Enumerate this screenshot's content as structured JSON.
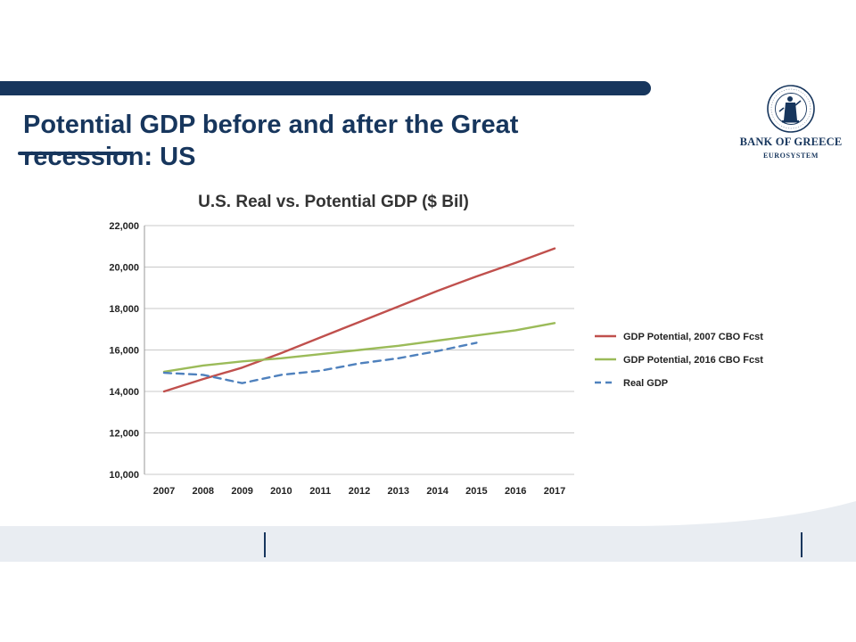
{
  "slide": {
    "title": "Potential GDP before and after the Great recession: US"
  },
  "logo": {
    "name": "BANK OF GREECE",
    "subtitle": "EUROSYSTEM"
  },
  "colors": {
    "brand_navy": "#17365d",
    "series_2007": "#c0504d",
    "series_2016": "#9bbb59",
    "series_real": "#4f81bd"
  },
  "chart_data": {
    "type": "line",
    "title": "U.S. Real vs. Potential GDP ($ Bil)",
    "xlabel": "",
    "ylabel": "",
    "x": [
      "2007",
      "2008",
      "2009",
      "2010",
      "2011",
      "2012",
      "2013",
      "2014",
      "2015",
      "2016",
      "2017"
    ],
    "ylim": [
      10000,
      22000
    ],
    "yticks": [
      10000,
      12000,
      14000,
      16000,
      18000,
      20000,
      22000
    ],
    "ytick_labels": [
      "10,000",
      "12,000",
      "14,000",
      "16,000",
      "18,000",
      "20,000",
      "22,000"
    ],
    "grid": true,
    "legend_position": "right",
    "series": [
      {
        "name": "GDP Potential, 2007 CBO Fcst",
        "color": "#c0504d",
        "dash": "solid",
        "values": [
          14000,
          14600,
          15150,
          15850,
          16600,
          17350,
          18100,
          18850,
          19550,
          20200,
          20900
        ]
      },
      {
        "name": "GDP Potential, 2016 CBO Fcst",
        "color": "#9bbb59",
        "dash": "solid",
        "values": [
          14950,
          15250,
          15450,
          15600,
          15800,
          16000,
          16200,
          16450,
          16700,
          16950,
          17300
        ]
      },
      {
        "name": "Real GDP",
        "color": "#4f81bd",
        "dash": "dashed",
        "values": [
          14900,
          14800,
          14400,
          14800,
          15000,
          15350,
          15600,
          15950,
          16350,
          null,
          null
        ]
      }
    ]
  }
}
